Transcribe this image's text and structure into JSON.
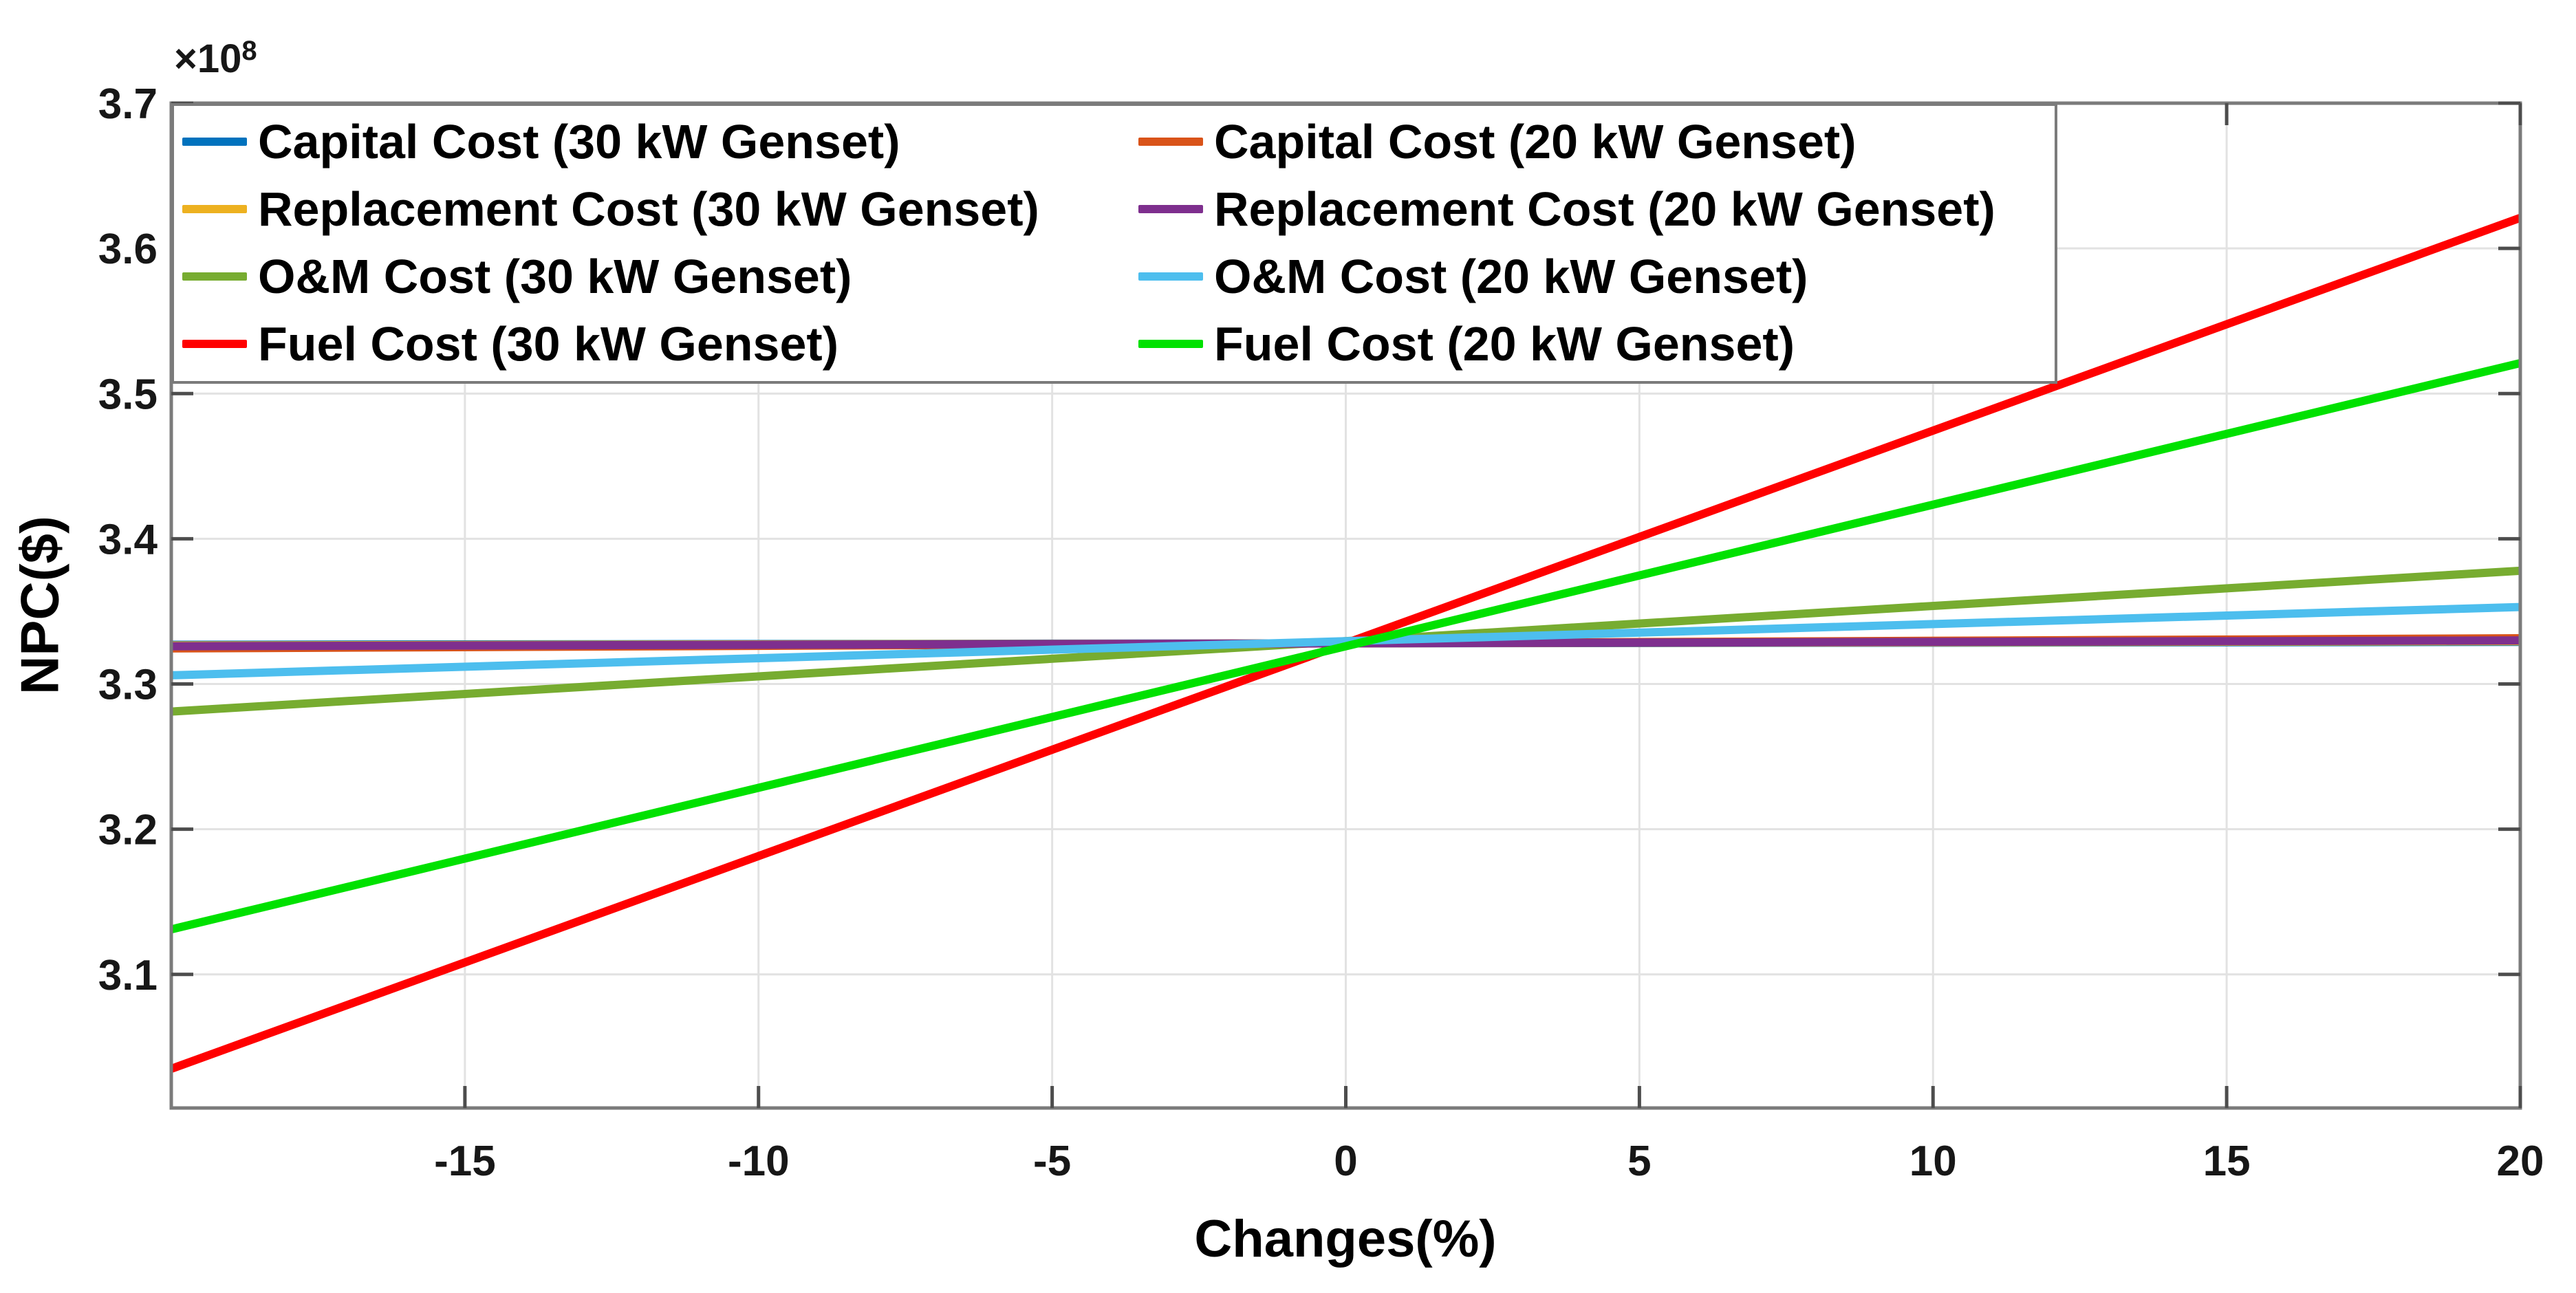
{
  "figure": {
    "background": "#ffffff",
    "axis_multiplier": {
      "base": "×10",
      "exponent": "8"
    }
  },
  "chart_data": {
    "type": "line",
    "title": "",
    "xlabel": "Changes(%)",
    "ylabel": "NPC($)",
    "y_units_note": "NPC values are ×10^8 dollars",
    "xlim": [
      -20,
      20
    ],
    "ylim": [
      3.008,
      3.7
    ],
    "xticks": [
      -15,
      -10,
      -5,
      0,
      5,
      10,
      15,
      20
    ],
    "xtick_labels": [
      "-15",
      "-10",
      "-5",
      "0",
      "5",
      "10",
      "15",
      "20"
    ],
    "yticks": [
      3.1,
      3.2,
      3.3,
      3.4,
      3.5,
      3.6,
      3.7
    ],
    "ytick_labels": [
      "3.1",
      "3.2",
      "3.3",
      "3.4",
      "3.5",
      "3.6",
      "3.7"
    ],
    "grid": true,
    "legend_position": "northwest-inside, 2 columns (30 kW column left, 20 kW column right)",
    "x": [
      -20,
      20
    ],
    "series": [
      {
        "name": "Capital Cost (30 kW Genset)",
        "color": "#0072BD",
        "values": [
          3.327,
          3.329
        ]
      },
      {
        "name": "Replacement Cost (30 kW Genset)",
        "color": "#EDB120",
        "values": [
          3.3265,
          3.3295
        ]
      },
      {
        "name": "O&M Cost (30 kW Genset)",
        "color": "#77AC30",
        "values": [
          3.281,
          3.378
        ]
      },
      {
        "name": "Fuel Cost (30 kW Genset)",
        "color": "#FF0000",
        "values": [
          3.035,
          3.621
        ]
      },
      {
        "name": "Capital Cost (20 kW Genset)",
        "color": "#D95319",
        "values": [
          3.3245,
          3.3315
        ]
      },
      {
        "name": "Replacement Cost (20 kW Genset)",
        "color": "#7E2F8E",
        "values": [
          3.326,
          3.33
        ]
      },
      {
        "name": "O&M Cost (20 kW Genset)",
        "color": "#4DBEEE",
        "values": [
          3.306,
          3.353
        ]
      },
      {
        "name": "Fuel Cost (20 kW Genset)",
        "color": "#00E100",
        "values": [
          3.131,
          3.521
        ]
      }
    ]
  },
  "colors": {
    "axes_border": "#7b7b7b",
    "grid_line": "#e2e2e2",
    "tick_mark": "#4d4d4d",
    "tick_text": "#171717",
    "label_text": "#000000"
  }
}
